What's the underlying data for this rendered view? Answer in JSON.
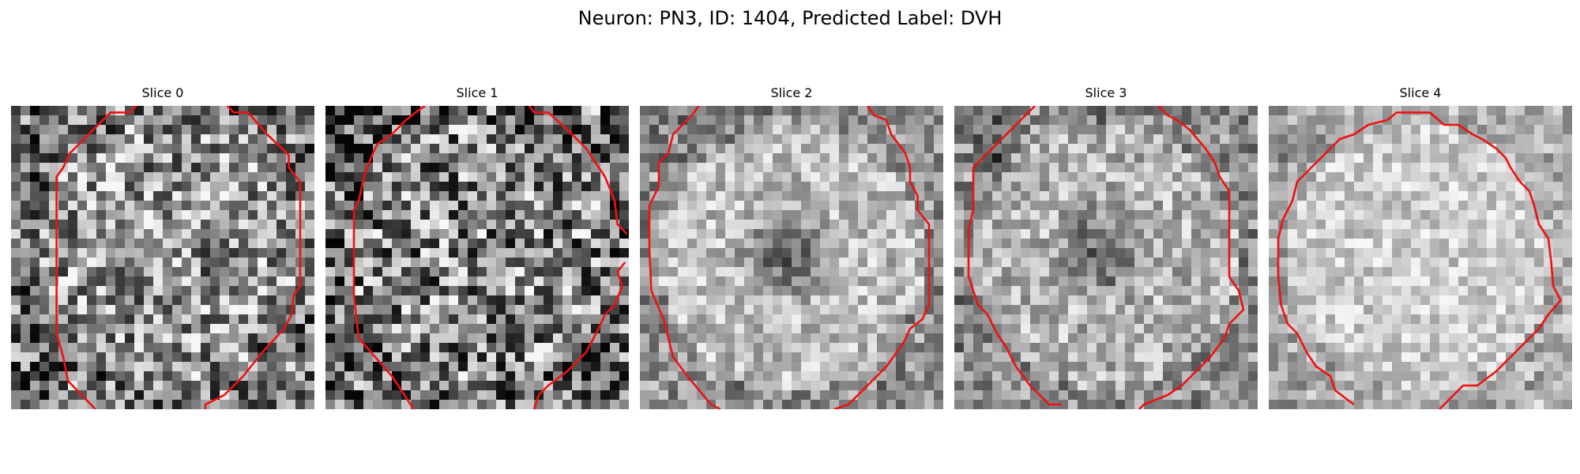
{
  "figure": {
    "title": "Neuron: PN3, ID: 1404, Predicted Label: DVH"
  },
  "contour_color": "#ee1111",
  "slices": [
    {
      "label": "Slice 0",
      "seed": 11,
      "center_dark": 0.0,
      "base": 0.58,
      "noise": 0.42,
      "ring": 0.04
    },
    {
      "label": "Slice 1",
      "seed": 23,
      "center_dark": 0.0,
      "base": 0.52,
      "noise": 0.48,
      "ring": 0.03
    },
    {
      "label": "Slice 2",
      "seed": 37,
      "center_dark": 0.38,
      "base": 0.74,
      "noise": 0.22,
      "ring": 0.1
    },
    {
      "label": "Slice 3",
      "seed": 53,
      "center_dark": 0.34,
      "base": 0.7,
      "noise": 0.24,
      "ring": 0.08
    },
    {
      "label": "Slice 4",
      "seed": 71,
      "center_dark": 0.0,
      "base": 0.8,
      "noise": 0.18,
      "ring": 0.06
    }
  ]
}
